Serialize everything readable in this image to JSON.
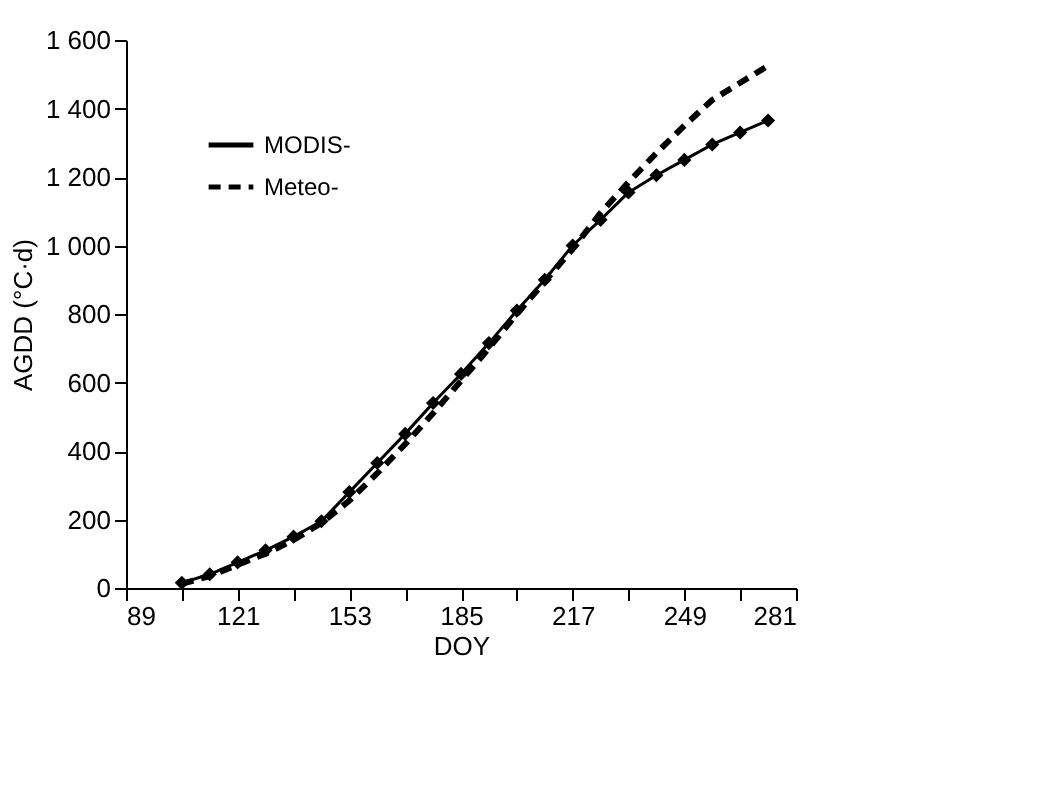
{
  "chart_data": {
    "type": "line",
    "xlabel": "DOY",
    "ylabel": "AGDD (°C·d)",
    "x": [
      105,
      113,
      121,
      129,
      137,
      145,
      153,
      161,
      169,
      177,
      185,
      193,
      201,
      209,
      217,
      225,
      233,
      241,
      249,
      257,
      265,
      273
    ],
    "series": [
      {
        "name": "MODIS-",
        "color": "#000000",
        "marker": "diamond",
        "line_style": "solid",
        "values": [
          15,
          40,
          75,
          110,
          150,
          195,
          280,
          365,
          450,
          540,
          625,
          715,
          810,
          900,
          1000,
          1075,
          1155,
          1205,
          1250,
          1295,
          1330,
          1365
        ]
      },
      {
        "name": "Meteo-",
        "color": "#000000",
        "marker": "none",
        "line_style": "dashed",
        "values": [
          12,
          35,
          68,
          100,
          140,
          190,
          255,
          335,
          420,
          510,
          605,
          700,
          800,
          895,
          990,
          1095,
          1185,
          1270,
          1350,
          1425,
          1475,
          1525
        ]
      }
    ],
    "xlim": [
      89,
      281
    ],
    "xticks": [
      89,
      {
        "value": 105,
        "label": null
      },
      121,
      {
        "value": 137,
        "label": null
      },
      153,
      {
        "value": 169,
        "label": null
      },
      185,
      {
        "value": 201,
        "label": null
      },
      217,
      {
        "value": 233,
        "label": null
      },
      249,
      {
        "value": 265,
        "label": null
      },
      281
    ],
    "ylim": [
      0,
      1600
    ],
    "yticks": [
      0,
      200,
      400,
      600,
      800,
      {
        "value": 1000,
        "label": "1 000"
      },
      {
        "value": 1200,
        "label": "1 200"
      },
      {
        "value": 1400,
        "label": "1 400"
      },
      {
        "value": 1600,
        "label": "1 600"
      }
    ],
    "grid": false,
    "legend": "top left"
  }
}
